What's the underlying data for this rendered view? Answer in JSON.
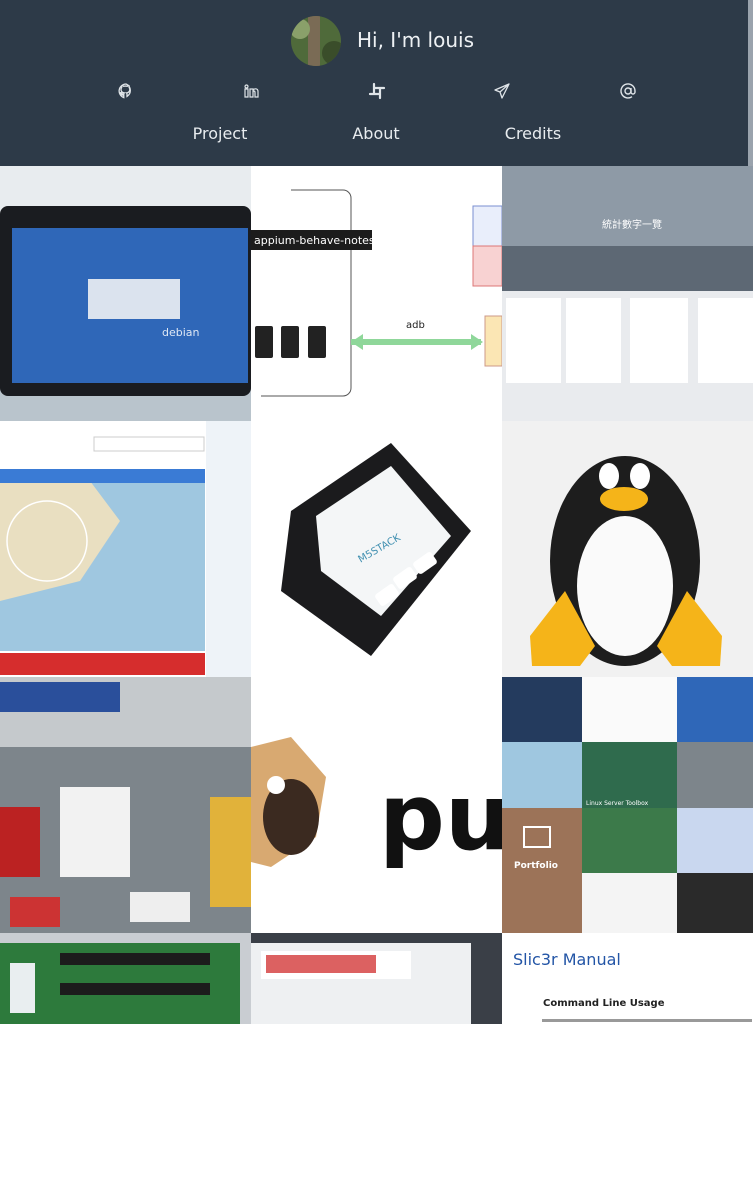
{
  "header": {
    "greeting": "Hi, I'm louis",
    "nav": [
      "Project",
      "About",
      "Credits"
    ]
  },
  "tiles": {
    "tooltip": "appium-behave-notes",
    "adb": "adb",
    "stats": "統計數字一覽",
    "debian": "debian",
    "m5": "M5STACK",
    "pug": "pu",
    "portfolio": "Portfolio",
    "toolbox": "Linux Server Toolbox",
    "slic3r": "Slic3r Manual",
    "cli": "Command Line Usage"
  }
}
